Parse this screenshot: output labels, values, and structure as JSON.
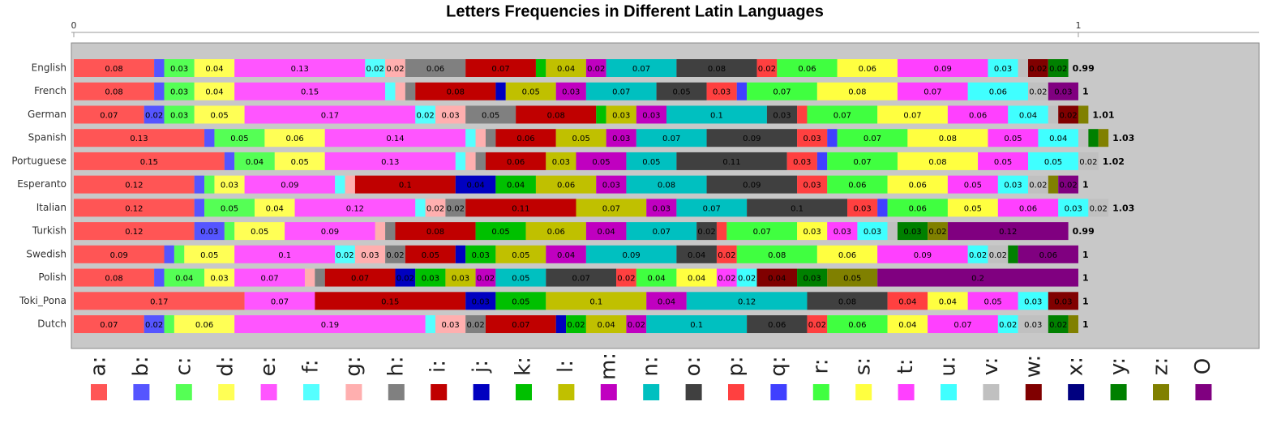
{
  "chart_data": {
    "type": "stacked-barh",
    "title": "Letters Frequencies in Different Latin Languages",
    "categories": [
      "English",
      "French",
      "German",
      "Spanish",
      "Portuguese",
      "Esperanto",
      "Italian",
      "Turkish",
      "Swedish",
      "Polish",
      "Toki_Pona",
      "Dutch"
    ],
    "totals": [
      0.99,
      1,
      1.01,
      1.03,
      1.02,
      1,
      1.03,
      0.99,
      1,
      1,
      1,
      1
    ],
    "xlim": [
      0,
      1.18
    ],
    "xticks": [
      0,
      1
    ],
    "series": [
      {
        "name": "a:",
        "color": "#ff5555",
        "values": [
          0.08,
          0.08,
          0.07,
          0.13,
          0.15,
          0.12,
          0.12,
          0.12,
          0.09,
          0.08,
          0.17,
          0.07
        ]
      },
      {
        "name": "b:",
        "color": "#5555ff",
        "values": [
          0.01,
          0.01,
          0.02,
          0.01,
          0.01,
          0.01,
          0.01,
          0.03,
          0.01,
          0.01,
          0,
          0.02
        ]
      },
      {
        "name": "c:",
        "color": "#55ff55",
        "values": [
          0.03,
          0.03,
          0.03,
          0.05,
          0.04,
          0.01,
          0.05,
          0.01,
          0.01,
          0.04,
          0,
          0.01
        ]
      },
      {
        "name": "d:",
        "color": "#ffff55",
        "values": [
          0.04,
          0.04,
          0.05,
          0.06,
          0.05,
          0.03,
          0.04,
          0.05,
          0.05,
          0.03,
          0,
          0.06
        ]
      },
      {
        "name": "e:",
        "color": "#ff55ff",
        "values": [
          0.13,
          0.15,
          0.17,
          0.14,
          0.13,
          0.09,
          0.12,
          0.09,
          0.1,
          0.07,
          0.07,
          0.19
        ]
      },
      {
        "name": "f:",
        "color": "#55ffff",
        "values": [
          0.02,
          0.01,
          0.02,
          0.01,
          0.01,
          0.01,
          0.01,
          0,
          0.02,
          0,
          0,
          0.01
        ]
      },
      {
        "name": "g:",
        "color": "#ffafaf",
        "values": [
          0.02,
          0.01,
          0.03,
          0.01,
          0.01,
          0.01,
          0.02,
          0.01,
          0.03,
          0.01,
          0,
          0.03
        ]
      },
      {
        "name": "h:",
        "color": "#808080",
        "values": [
          0.06,
          0.01,
          0.05,
          0.01,
          0.01,
          0,
          0.02,
          0.01,
          0.02,
          0.01,
          0,
          0.02
        ]
      },
      {
        "name": "i:",
        "color": "#c00000",
        "values": [
          0.07,
          0.08,
          0.08,
          0.06,
          0.06,
          0.1,
          0.11,
          0.08,
          0.05,
          0.07,
          0.15,
          0.07
        ]
      },
      {
        "name": "j:",
        "color": "#0000c0",
        "values": [
          0,
          0.01,
          0,
          0,
          0,
          0.04,
          0,
          0,
          0.01,
          0.02,
          0.03,
          0.01
        ]
      },
      {
        "name": "k:",
        "color": "#00c000",
        "values": [
          0.01,
          0,
          0.01,
          0,
          0,
          0.04,
          0,
          0.05,
          0.03,
          0.03,
          0.05,
          0.02
        ]
      },
      {
        "name": "l:",
        "color": "#c0c000",
        "values": [
          0.04,
          0.05,
          0.03,
          0.05,
          0.03,
          0.06,
          0.07,
          0.06,
          0.05,
          0.03,
          0.1,
          0.04
        ]
      },
      {
        "name": "m:",
        "color": "#c000c0",
        "values": [
          0.02,
          0.03,
          0.03,
          0.03,
          0.05,
          0.03,
          0.03,
          0.04,
          0.04,
          0.02,
          0.04,
          0.02
        ]
      },
      {
        "name": "n:",
        "color": "#00c0c0",
        "values": [
          0.07,
          0.07,
          0.1,
          0.07,
          0.05,
          0.08,
          0.07,
          0.07,
          0.09,
          0.05,
          0.12,
          0.1
        ]
      },
      {
        "name": "o:",
        "color": "#404040",
        "values": [
          0.08,
          0.05,
          0.03,
          0.09,
          0.11,
          0.09,
          0.1,
          0.02,
          0.04,
          0.07,
          0.08,
          0.06
        ]
      },
      {
        "name": "p:",
        "color": "#ff4040",
        "values": [
          0.02,
          0.03,
          0.01,
          0.03,
          0.03,
          0.03,
          0.03,
          0.01,
          0.02,
          0.02,
          0.04,
          0.02
        ]
      },
      {
        "name": "q:",
        "color": "#4040ff",
        "values": [
          0,
          0.01,
          0,
          0.01,
          0.01,
          0,
          0.01,
          0,
          0,
          0,
          0,
          0
        ]
      },
      {
        "name": "r:",
        "color": "#40ff40",
        "values": [
          0.06,
          0.07,
          0.07,
          0.07,
          0.07,
          0.06,
          0.06,
          0.07,
          0.08,
          0.04,
          0,
          0.06
        ]
      },
      {
        "name": "s:",
        "color": "#ffff40",
        "values": [
          0.06,
          0.08,
          0.07,
          0.08,
          0.08,
          0.06,
          0.05,
          0.03,
          0.06,
          0.04,
          0.04,
          0.04
        ]
      },
      {
        "name": "t:",
        "color": "#ff40ff",
        "values": [
          0.09,
          0.07,
          0.06,
          0.05,
          0.05,
          0.05,
          0.06,
          0.03,
          0.09,
          0.02,
          0.05,
          0.07
        ]
      },
      {
        "name": "u:",
        "color": "#40ffff",
        "values": [
          0.03,
          0.06,
          0.04,
          0.04,
          0.05,
          0.03,
          0.03,
          0.03,
          0.02,
          0.02,
          0.03,
          0.02
        ]
      },
      {
        "name": "v:",
        "color": "#c0c0c0",
        "values": [
          0.01,
          0.02,
          0.01,
          0.01,
          0.02,
          0.02,
          0.02,
          0.01,
          0.02,
          0,
          0,
          0.03
        ]
      },
      {
        "name": "w:",
        "color": "#800000",
        "values": [
          0.02,
          0,
          0.02,
          0,
          0,
          0,
          0,
          0,
          0,
          0.04,
          0.03,
          0
        ]
      },
      {
        "name": "x:",
        "color": "#000080",
        "values": [
          0,
          0,
          0,
          0,
          0,
          0,
          0,
          0,
          0,
          0,
          0,
          0
        ]
      },
      {
        "name": "y:",
        "color": "#008000",
        "values": [
          0.02,
          0,
          0,
          0.01,
          0,
          0,
          0,
          0.03,
          0.01,
          0.03,
          0,
          0.02
        ]
      },
      {
        "name": "z:",
        "color": "#808000",
        "values": [
          0,
          0,
          0.01,
          0.01,
          0,
          0.01,
          0,
          0.02,
          0,
          0.05,
          0,
          0.01
        ]
      },
      {
        "name": "O",
        "color": "#800080",
        "values": [
          0,
          0.03,
          0,
          0,
          0,
          0.02,
          0,
          0.12,
          0.06,
          0.2,
          0,
          0
        ]
      }
    ]
  }
}
